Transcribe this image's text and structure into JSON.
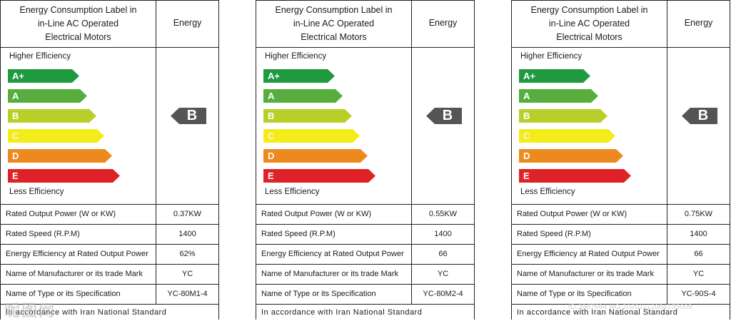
{
  "labels": [
    {
      "title_lines": [
        "Energy Consumption Label in",
        "in-Line AC Operated",
        "Electrical Motors"
      ],
      "energy_header": "Energy",
      "higher_efficiency": "Higher Efficiency",
      "less_efficiency": "Less Efficiency",
      "classes": [
        "A+",
        "A",
        "B",
        "C",
        "D",
        "E"
      ],
      "rating": "B",
      "rows": [
        {
          "label": "Rated Output Power (W or KW)",
          "value": "0.37KW"
        },
        {
          "label": "Rated Speed (R.P.M)",
          "value": "1400"
        },
        {
          "label": "Energy Efficiency at Rated Output Power",
          "value": "62%"
        },
        {
          "label": "Name of Manufacturer or its trade Mark",
          "value": "YC"
        },
        {
          "label": "Name of Type or its Specification",
          "value": "YC-80M1-4"
        }
      ],
      "footer": "In accordance with Iran National Standard"
    },
    {
      "title_lines": [
        "Energy Consumption Label in",
        "in-Line AC Operated",
        "Electrical Motors"
      ],
      "energy_header": "Energy",
      "higher_efficiency": "Higher Efficiency",
      "less_efficiency": "Less Efficiency",
      "classes": [
        "A+",
        "A",
        "B",
        "C",
        "D",
        "E"
      ],
      "rating": "B",
      "rows": [
        {
          "label": "Rated Output Power (W or KW)",
          "value": "0.55KW"
        },
        {
          "label": "Rated Speed (R.P.M)",
          "value": "1400"
        },
        {
          "label": "Energy Efficiency at Rated Output Power",
          "value": "66"
        },
        {
          "label": "Name of Manufacturer or its trade Mark",
          "value": "YC"
        },
        {
          "label": "Name of Type or its Specification",
          "value": "YC-80M2-4"
        }
      ],
      "footer": "In accordance with Iran National Standard"
    },
    {
      "title_lines": [
        "Energy Consumption Label in",
        "in-Line AC Operated",
        "Electrical Motors"
      ],
      "energy_header": "Energy",
      "higher_efficiency": "Higher Efficiency",
      "less_efficiency": "Less Efficiency",
      "classes": [
        "A+",
        "A",
        "B",
        "C",
        "D",
        "E"
      ],
      "rating": "B",
      "rows": [
        {
          "label": "Rated Output Power (W or KW)",
          "value": "0.75KW"
        },
        {
          "label": "Rated Speed (R.P.M)",
          "value": "1400"
        },
        {
          "label": "Energy Efficiency at Rated Output Power",
          "value": "66"
        },
        {
          "label": "Name of Manufacturer or its trade Mark",
          "value": "YC"
        },
        {
          "label": "Name of Type or its Specification",
          "value": "YC-90S-4"
        }
      ],
      "footer": "In accordance with Iran National Standard"
    }
  ],
  "class_colors": [
    "#1f9a3e",
    "#57ae3f",
    "#b8cf2a",
    "#f4ec1a",
    "#ec8a1f",
    "#df2128"
  ],
  "rating_color": "#555555",
  "watermark": "昵图网",
  "watermark_id": "ID:3967694 NO:20201112084155009"
}
